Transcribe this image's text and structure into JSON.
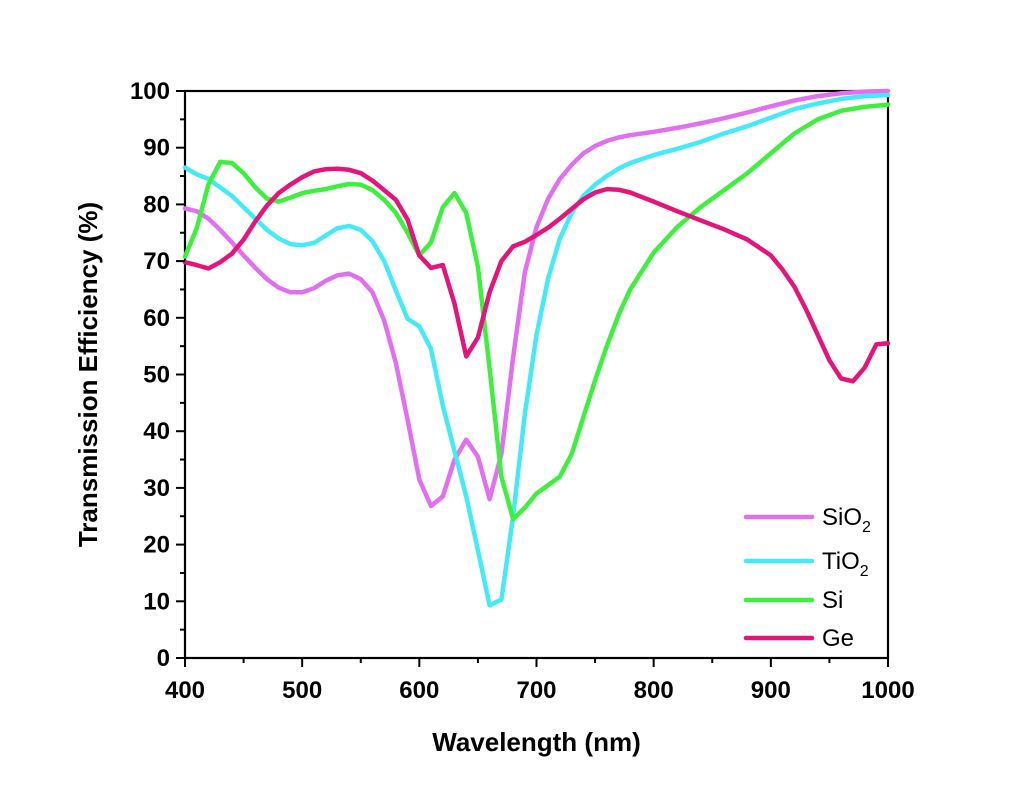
{
  "chart_data": {
    "type": "line",
    "title": "",
    "xlabel": "Wavelength (nm)",
    "ylabel": "Transmission Efficiency (%)",
    "xlim": [
      400,
      1000
    ],
    "ylim": [
      0,
      100
    ],
    "xticks": [
      400,
      500,
      600,
      700,
      800,
      900,
      1000
    ],
    "yticks": [
      0,
      10,
      20,
      30,
      40,
      50,
      60,
      70,
      80,
      90,
      100
    ],
    "grid": false,
    "legend_position": "bottom-right",
    "series": [
      {
        "name": "SiO",
        "name_sub": "2",
        "color": "#e070f0",
        "x": [
          400,
          410,
          420,
          430,
          440,
          450,
          460,
          470,
          480,
          490,
          500,
          510,
          520,
          530,
          540,
          550,
          560,
          570,
          580,
          590,
          600,
          610,
          620,
          630,
          640,
          650,
          660,
          670,
          680,
          690,
          700,
          710,
          720,
          730,
          740,
          750,
          760,
          770,
          780,
          800,
          820,
          840,
          860,
          880,
          900,
          920,
          940,
          960,
          980,
          1000
        ],
        "y": [
          79.3,
          78.8,
          77.5,
          75.5,
          73.3,
          71.0,
          68.8,
          66.8,
          65.3,
          64.5,
          64.5,
          65.2,
          66.5,
          67.5,
          67.8,
          66.8,
          64.5,
          59.5,
          52.0,
          42.0,
          31.5,
          26.8,
          28.5,
          35.0,
          38.5,
          35.5,
          28.0,
          36.0,
          53.0,
          68.0,
          76.0,
          81.0,
          84.5,
          87.0,
          89.0,
          90.3,
          91.2,
          91.8,
          92.2,
          92.8,
          93.5,
          94.3,
          95.2,
          96.2,
          97.3,
          98.3,
          99.1,
          99.6,
          99.9,
          100
        ]
      },
      {
        "name": "TiO",
        "name_sub": "2",
        "color": "#44eaf5",
        "x": [
          400,
          410,
          420,
          430,
          440,
          450,
          460,
          470,
          480,
          490,
          500,
          510,
          520,
          530,
          540,
          550,
          560,
          570,
          580,
          590,
          600,
          610,
          620,
          630,
          640,
          650,
          660,
          670,
          680,
          690,
          700,
          710,
          720,
          730,
          740,
          750,
          760,
          770,
          780,
          800,
          820,
          840,
          860,
          880,
          900,
          920,
          940,
          960,
          980,
          1000
        ],
        "y": [
          86.5,
          85.3,
          84.5,
          83.0,
          81.5,
          79.5,
          77.5,
          75.5,
          74.0,
          73.0,
          72.8,
          73.2,
          74.5,
          75.8,
          76.2,
          75.5,
          73.5,
          70.0,
          64.8,
          59.8,
          58.5,
          54.5,
          44.5,
          36.5,
          28.5,
          19.0,
          9.3,
          10.3,
          25.0,
          43.0,
          57.0,
          67.0,
          74.0,
          78.5,
          81.5,
          83.5,
          85.0,
          86.3,
          87.3,
          88.7,
          89.8,
          91.0,
          92.5,
          93.8,
          95.3,
          96.8,
          97.8,
          98.6,
          99.1,
          99.3
        ]
      },
      {
        "name": "Si",
        "name_sub": "",
        "color": "#3ef03e",
        "x": [
          400,
          410,
          420,
          430,
          440,
          450,
          460,
          470,
          480,
          490,
          500,
          510,
          520,
          530,
          540,
          550,
          560,
          570,
          580,
          590,
          600,
          610,
          620,
          630,
          640,
          650,
          660,
          670,
          680,
          690,
          700,
          710,
          720,
          730,
          740,
          750,
          760,
          770,
          780,
          800,
          820,
          840,
          860,
          880,
          900,
          920,
          940,
          960,
          980,
          1000
        ],
        "y": [
          70.8,
          75.8,
          83.5,
          87.5,
          87.3,
          85.5,
          83.0,
          81.0,
          80.5,
          81.2,
          82.0,
          82.4,
          82.7,
          83.2,
          83.6,
          83.5,
          82.5,
          80.8,
          78.5,
          75.0,
          71.0,
          73.3,
          79.5,
          82.0,
          78.5,
          69.0,
          51.0,
          32.0,
          24.5,
          26.5,
          29.0,
          30.5,
          32.0,
          36.0,
          42.5,
          49.0,
          55.0,
          60.5,
          65.0,
          71.5,
          76.0,
          79.5,
          82.5,
          85.5,
          89.0,
          92.5,
          95.0,
          96.5,
          97.2,
          97.6
        ]
      },
      {
        "name": "Ge",
        "name_sub": "",
        "color": "#e5147a",
        "x": [
          400,
          410,
          420,
          430,
          440,
          450,
          460,
          470,
          480,
          490,
          500,
          510,
          520,
          530,
          540,
          550,
          560,
          570,
          580,
          590,
          600,
          610,
          620,
          630,
          640,
          650,
          660,
          670,
          680,
          690,
          700,
          710,
          720,
          730,
          740,
          750,
          760,
          770,
          780,
          800,
          820,
          840,
          860,
          880,
          900,
          910,
          920,
          930,
          940,
          950,
          960,
          970,
          980,
          990,
          1000
        ],
        "y": [
          69.8,
          69.3,
          68.7,
          69.8,
          71.3,
          73.8,
          77.0,
          79.8,
          82.0,
          83.5,
          84.8,
          85.8,
          86.2,
          86.3,
          86.1,
          85.5,
          84.2,
          82.5,
          80.8,
          77.3,
          71.0,
          68.8,
          69.3,
          62.5,
          53.2,
          56.5,
          64.5,
          70.0,
          72.6,
          73.4,
          74.6,
          75.9,
          77.5,
          79.2,
          80.9,
          82.1,
          82.7,
          82.6,
          82.1,
          80.5,
          78.8,
          77.2,
          75.6,
          73.8,
          71.0,
          68.5,
          65.5,
          61.5,
          57.0,
          52.5,
          49.3,
          48.8,
          51.2,
          55.3,
          55.5
        ]
      }
    ]
  }
}
